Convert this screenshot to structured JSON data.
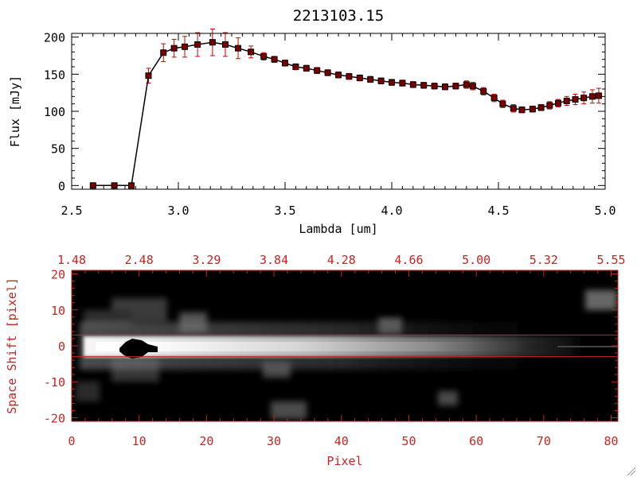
{
  "chart_data": [
    {
      "type": "line",
      "title": "2213103.15",
      "xlabel": "Lambda [um]",
      "ylabel": "Flux [mJy]",
      "xlim": [
        2.5,
        5.0
      ],
      "ylim": [
        -5,
        205
      ],
      "x_ticks": [
        "2.5",
        "3.0",
        "3.5",
        "4.0",
        "4.5",
        "5.0"
      ],
      "x_tick_values": [
        2.5,
        3.0,
        3.5,
        4.0,
        4.5,
        5.0
      ],
      "y_ticks": [
        "0",
        "50",
        "100",
        "150",
        "200"
      ],
      "y_tick_values": [
        0,
        50,
        100,
        150,
        200
      ],
      "series": [
        {
          "line_color": "#000000",
          "marker_color": "#7a0000",
          "error_color": "#d00000",
          "x": [
            2.6,
            2.7,
            2.78,
            2.86,
            2.93,
            2.98,
            3.03,
            3.09,
            3.16,
            3.22,
            3.28,
            3.34,
            3.4,
            3.45,
            3.5,
            3.55,
            3.6,
            3.65,
            3.7,
            3.75,
            3.8,
            3.85,
            3.9,
            3.95,
            4.0,
            4.05,
            4.1,
            4.15,
            4.2,
            4.25,
            4.3,
            4.35,
            4.38,
            4.43,
            4.48,
            4.52,
            4.57,
            4.61,
            4.66,
            4.7,
            4.74,
            4.78,
            4.82,
            4.86,
            4.9,
            4.94,
            4.97
          ],
          "y": [
            0,
            0,
            0,
            148,
            179,
            185,
            187,
            190,
            193,
            190,
            185,
            180,
            174,
            170,
            165,
            160,
            158,
            155,
            152,
            149,
            147,
            145,
            143,
            141,
            139,
            138,
            136,
            135,
            134,
            133,
            134,
            136,
            134,
            127,
            118,
            110,
            104,
            102,
            103,
            105,
            108,
            111,
            114,
            116,
            118,
            120,
            121
          ],
          "err": [
            0,
            0,
            0,
            10,
            12,
            12,
            14,
            16,
            18,
            16,
            14,
            8,
            5,
            4,
            4,
            4,
            4,
            4,
            4,
            4,
            4,
            4,
            4,
            4,
            4,
            4,
            4,
            4,
            4,
            4,
            4,
            5,
            5,
            5,
            5,
            5,
            5,
            4,
            4,
            4,
            5,
            5,
            6,
            7,
            8,
            9,
            10
          ]
        }
      ]
    },
    {
      "type": "heatmap",
      "xlabel": "Pixel",
      "ylabel": "Space Shift [pixel]",
      "xlim": [
        0,
        81
      ],
      "ylim": [
        -21,
        21
      ],
      "x_ticks": [
        "0",
        "10",
        "20",
        "30",
        "40",
        "50",
        "60",
        "70",
        "80"
      ],
      "x_tick_values": [
        0,
        10,
        20,
        30,
        40,
        50,
        60,
        70,
        80
      ],
      "y_ticks": [
        "20",
        "10",
        "0",
        "-10",
        "-20"
      ],
      "y_tick_values": [
        20,
        10,
        0,
        -10,
        -20
      ],
      "top_ticks": [
        "1.48",
        "2.48",
        "3.29",
        "3.84",
        "4.28",
        "4.66",
        "5.00",
        "5.32",
        "5.55"
      ],
      "top_tick_values": [
        0,
        10,
        20,
        30,
        40,
        50,
        60,
        70,
        80
      ],
      "extraction_band": [
        -3,
        3
      ],
      "axis_color": "#cc2222"
    }
  ]
}
